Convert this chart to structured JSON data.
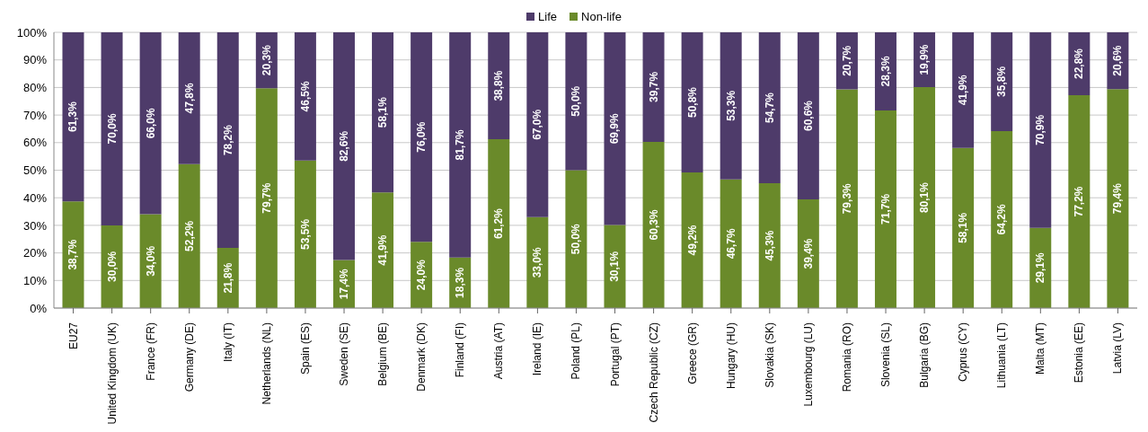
{
  "chart_data": {
    "type": "bar",
    "stacked": true,
    "legend": "top",
    "grid": "y",
    "categories": [
      "EU27",
      "United Kingdom (UK)",
      "France (FR)",
      "Germany (DE)",
      "Italy (IT)",
      "Netherlands (NL)",
      "Spain (ES)",
      "Sweden (SE)",
      "Belgium (BE)",
      "Denmark (DK)",
      "Finland (FI)",
      "Austria (AT)",
      "Ireland (IE)",
      "Poland (PL)",
      "Portugal (PT)",
      "Czech Republic (CZ)",
      "Greece (GR)",
      "Hungary (HU)",
      "Slovakia (SK)",
      "Luxembourg (LU)",
      "Romania (RO)",
      "Slovenia (SL)",
      "Bulgaria (BG)",
      "Cyprus (CY)",
      "Lithuania (LT)",
      "Malta (MT)",
      "Estonia (EE)",
      "Latvia (LV)"
    ],
    "ylim": [
      0,
      100
    ],
    "yticks": [
      {
        "value": 0,
        "label": "0%"
      },
      {
        "value": 10,
        "label": "10%"
      },
      {
        "value": 20,
        "label": "20%"
      },
      {
        "value": 30,
        "label": "30%"
      },
      {
        "value": 40,
        "label": "40%"
      },
      {
        "value": 50,
        "label": "50%"
      },
      {
        "value": 60,
        "label": "60%"
      },
      {
        "value": 70,
        "label": "70%"
      },
      {
        "value": 80,
        "label": "80%"
      },
      {
        "value": 90,
        "label": "90%"
      },
      {
        "value": 100,
        "label": "100%"
      }
    ],
    "series": [
      {
        "name": "Non-life",
        "color": "#6a8a2a",
        "values": [
          38.7,
          30.0,
          34.0,
          52.2,
          21.8,
          79.7,
          53.5,
          17.4,
          41.9,
          24.0,
          18.3,
          61.2,
          33.0,
          50.0,
          30.1,
          60.3,
          49.2,
          46.7,
          45.3,
          39.4,
          79.3,
          71.7,
          80.1,
          58.1,
          64.2,
          29.1,
          77.2,
          79.4
        ],
        "value_labels": [
          "38,7%",
          "30,0%",
          "34,0%",
          "52,2%",
          "21,8%",
          "79,7%",
          "53,5%",
          "17,4%",
          "41,9%",
          "24,0%",
          "18,3%",
          "61,2%",
          "33,0%",
          "50,0%",
          "30,1%",
          "60,3%",
          "49,2%",
          "46,7%",
          "45,3%",
          "39,4%",
          "79,3%",
          "71,7%",
          "80,1%",
          "58,1%",
          "64,2%",
          "29,1%",
          "77,2%",
          "79,4%"
        ]
      },
      {
        "name": "Life",
        "color": "#4e3b6a",
        "values": [
          61.3,
          70.0,
          66.0,
          47.8,
          78.2,
          20.3,
          46.5,
          82.6,
          58.1,
          76.0,
          81.7,
          38.8,
          67.0,
          50.0,
          69.9,
          39.7,
          50.8,
          53.3,
          54.7,
          60.6,
          20.7,
          28.3,
          19.9,
          41.9,
          35.8,
          70.9,
          22.8,
          20.6
        ],
        "value_labels": [
          "61,3%",
          "70,0%",
          "66,0%",
          "47,8%",
          "78,2%",
          "20,3%",
          "46,5%",
          "82,6%",
          "58,1%",
          "76,0%",
          "81,7%",
          "38,8%",
          "67,0%",
          "50,0%",
          "69,9%",
          "39,7%",
          "50,8%",
          "53,3%",
          "54,7%",
          "60,6%",
          "20,7%",
          "28,3%",
          "19,9%",
          "41,9%",
          "35,8%",
          "70,9%",
          "22,8%",
          "20,6%"
        ]
      }
    ]
  }
}
